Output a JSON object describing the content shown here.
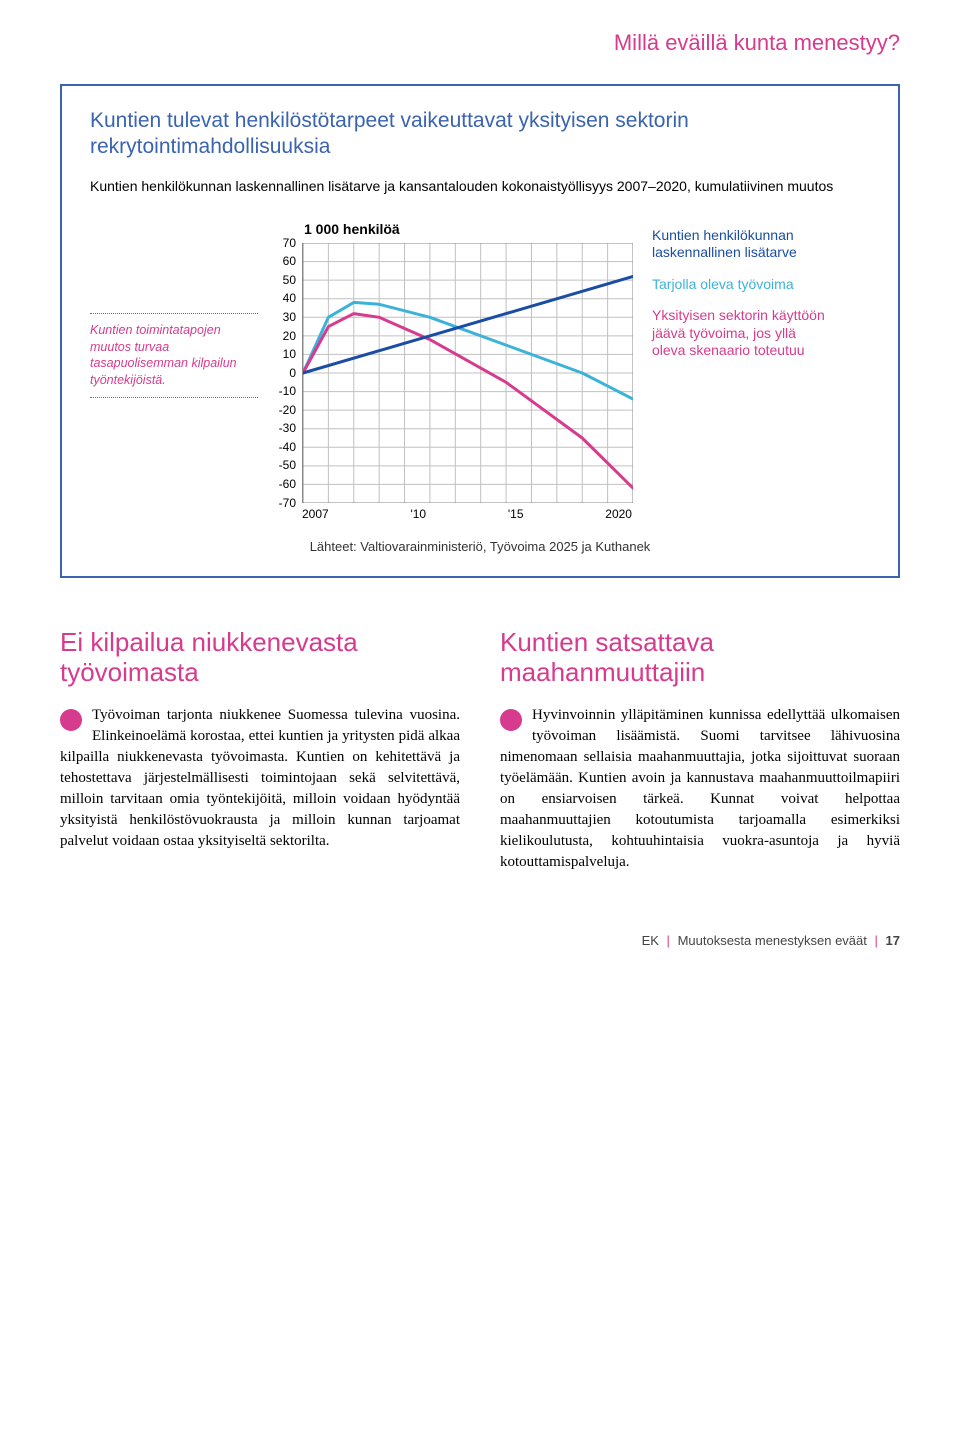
{
  "colors": {
    "brand_pink": "#d63b8e",
    "brand_blue": "#3a63b0",
    "line_dark_blue": "#1a4da3",
    "line_cyan": "#3bb3d9",
    "grid": "#c0c0c0"
  },
  "header": {
    "title": "Millä eväillä kunta menestyy?"
  },
  "chart": {
    "title": "Kuntien tulevat henkilöstötarpeet vaikeuttavat yksityisen sektorin rekrytointimahdollisuuksia",
    "subtitle": "Kuntien henkilökunnan laskennallinen lisätarve ja kansantalouden kokonaistyöllisyys 2007–2020, kumulatiivinen muutos",
    "sidenote": "Kuntien toimintatapojen muutos turvaa tasapuolisemman kilpailun työntekijöistä.",
    "y_label": "1 000 henkilöä",
    "ylim": [
      -70,
      70
    ],
    "ytick_step": 10,
    "yticks": [
      "70",
      "60",
      "50",
      "40",
      "30",
      "20",
      "10",
      "0",
      "-10",
      "-20",
      "-30",
      "-40",
      "-50",
      "-60",
      "-70"
    ],
    "xticks": [
      "2007",
      "'10",
      "'15",
      "2020"
    ],
    "x_years": [
      2007,
      2010,
      2015,
      2020
    ],
    "x_range": [
      2007,
      2020
    ],
    "series": {
      "lisatarve": {
        "label": "Kuntien henkilökunnan laskennallinen lisätarve",
        "color": "#1a4da3",
        "stroke_width": 3,
        "points": [
          [
            2007,
            0
          ],
          [
            2010,
            12
          ],
          [
            2015,
            32
          ],
          [
            2020,
            52
          ]
        ]
      },
      "tarjolla": {
        "label": "Tarjolla oleva työvoima",
        "color": "#3bb3d9",
        "stroke_width": 3,
        "points": [
          [
            2007,
            0
          ],
          [
            2008,
            30
          ],
          [
            2009,
            38
          ],
          [
            2010,
            37
          ],
          [
            2012,
            30
          ],
          [
            2015,
            15
          ],
          [
            2018,
            0
          ],
          [
            2020,
            -14
          ]
        ]
      },
      "yksityinen": {
        "label": "Yksityisen sektorin käyttöön jäävä työvoima, jos yllä oleva skenaario toteutuu",
        "color": "#d63b8e",
        "stroke_width": 3,
        "points": [
          [
            2007,
            0
          ],
          [
            2008,
            25
          ],
          [
            2009,
            32
          ],
          [
            2010,
            30
          ],
          [
            2012,
            18
          ],
          [
            2015,
            -5
          ],
          [
            2018,
            -35
          ],
          [
            2020,
            -62
          ]
        ]
      }
    },
    "legend_labels": {
      "l1": "Kuntien henkilökunnan laskennallinen lisätarve",
      "l2": "Tarjolla oleva työvoima",
      "l3": "Yksityisen sektorin käyttöön jäävä työvoima, jos yllä oleva skenaario toteutuu"
    },
    "source": "Lähteet: Valtiovarainministeriö, Työvoima 2025 ja Kuthanek"
  },
  "columns": {
    "left": {
      "heading": "Ei kilpailua niukkenevasta työvoimasta",
      "body": "Työvoiman tarjonta niukkenee Suomessa tulevina vuosina. Elinkeinoelämä korostaa, ettei kuntien ja yritysten pidä alkaa kilpailla niukkenevasta työvoimasta. Kuntien on kehitettävä ja tehostettava järjestelmällisesti toimintojaan sekä selvitettävä, milloin tarvitaan omia työntekijöitä, milloin voidaan hyödyntää yksityistä henkilöstövuokrausta ja milloin kunnan tarjoamat palvelut voidaan ostaa yksityiseltä sektorilta."
    },
    "right": {
      "heading": "Kuntien satsattava maahanmuuttajiin",
      "body": "Hyvinvoinnin ylläpitäminen kunnissa edellyttää ulkomaisen työvoiman lisäämistä. Suomi tarvitsee lähivuosina nimenomaan sellaisia maahanmuuttajia, jotka sijoittuvat suoraan työelämään. Kuntien avoin ja kannustava maahanmuuttoilmapiiri on ensiarvoisen tärkeä. Kunnat voivat helpottaa maahanmuuttajien kotoutumista tarjoamalla esimerkiksi kielikoulutusta, kohtuuhintaisia vuokra-asuntoja ja hyviä kotouttamispalveluja."
    }
  },
  "footer": {
    "ek": "EK",
    "title": "Muutoksesta menestyksen eväät",
    "page": "17"
  }
}
